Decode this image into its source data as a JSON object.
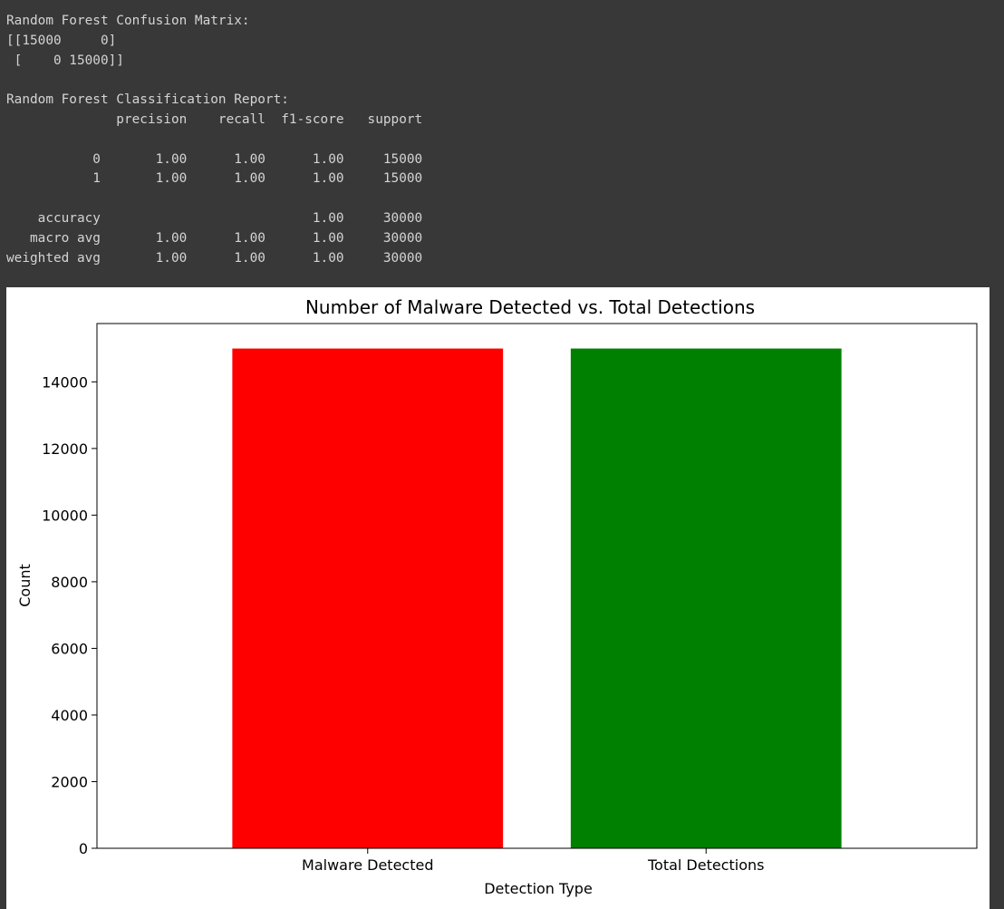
{
  "output": {
    "lines": [
      "Random Forest Confusion Matrix:",
      "[[15000     0]",
      " [    0 15000]]",
      "",
      "Random Forest Classification Report:",
      "              precision    recall  f1-score   support",
      "",
      "           0       1.00      1.00      1.00     15000",
      "           1       1.00      1.00      1.00     15000",
      "",
      "    accuracy                           1.00     30000",
      "   macro avg       1.00      1.00      1.00     30000",
      "weighted avg       1.00      1.00      1.00     30000"
    ]
  },
  "chart_data": {
    "type": "bar",
    "title": "Number of Malware Detected vs. Total Detections",
    "xlabel": "Detection Type",
    "ylabel": "Count",
    "categories": [
      "Malware Detected",
      "Total Detections"
    ],
    "values": [
      15000,
      15000
    ],
    "colors": [
      "#ff0000",
      "#008000"
    ],
    "ylim": [
      0,
      15750
    ],
    "yticks": [
      0,
      2000,
      4000,
      6000,
      8000,
      10000,
      12000,
      14000
    ],
    "grid": false,
    "legend": "none"
  }
}
